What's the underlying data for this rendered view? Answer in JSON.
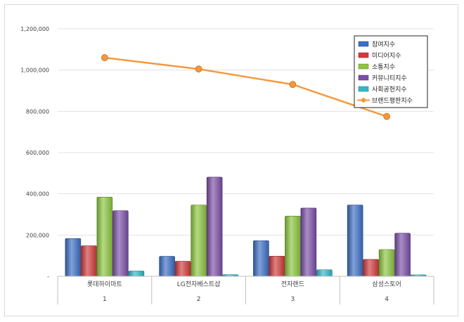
{
  "chart_data": {
    "type": "bar",
    "categories": [
      "롯데하이마트",
      "LG전자베스트샵",
      "전자랜드",
      "삼성스토어"
    ],
    "sub_categories": [
      "1",
      "2",
      "3",
      "4"
    ],
    "series": [
      {
        "name": "참여지수",
        "kind": "bar",
        "color": "#3b6fc4",
        "values": [
          183000,
          97000,
          173000,
          346000
        ]
      },
      {
        "name": "미디어지수",
        "kind": "bar",
        "color": "#d13b3b",
        "values": [
          148000,
          73000,
          98000,
          82000
        ]
      },
      {
        "name": "소통지수",
        "kind": "bar",
        "color": "#8cc63f",
        "values": [
          384000,
          346000,
          292000,
          130000
        ]
      },
      {
        "name": "커뮤니티지수",
        "kind": "bar",
        "color": "#7b4fa8",
        "values": [
          318000,
          481000,
          331000,
          209000
        ]
      },
      {
        "name": "사회공헌지수",
        "kind": "bar",
        "color": "#31b8c9",
        "values": [
          26000,
          8000,
          32000,
          7000
        ]
      },
      {
        "name": "브랜드평판지수",
        "kind": "line",
        "color": "#f5973a",
        "values": [
          1060000,
          1005000,
          930000,
          775000
        ]
      }
    ],
    "y_ticks": [
      "-",
      "200,000",
      "400,000",
      "600,000",
      "800,000",
      "1,000,000",
      "1,200,000"
    ],
    "ylim": [
      0,
      1200000
    ],
    "grid": true,
    "legend_position": "top-right"
  }
}
